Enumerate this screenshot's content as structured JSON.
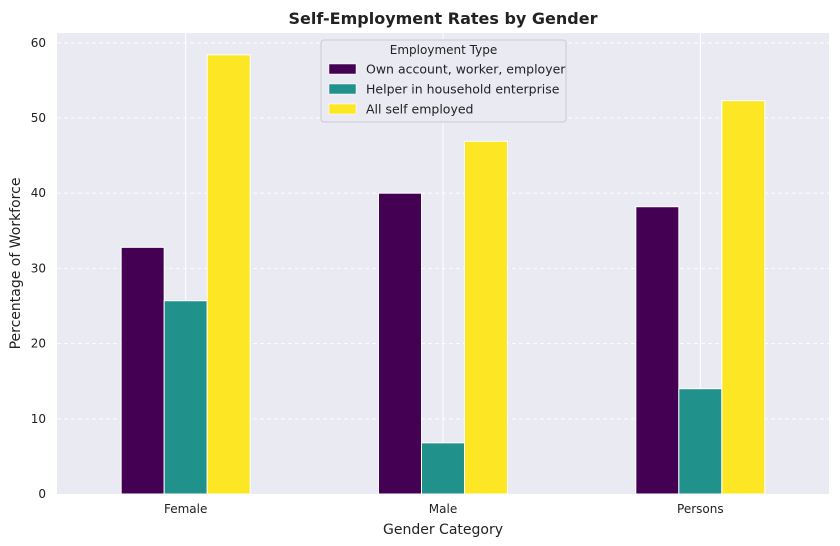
{
  "chart_data": {
    "type": "bar",
    "title": "Self-Employment Rates by Gender",
    "xlabel": "Gender Category",
    "ylabel": "Percentage of Workforce",
    "categories": [
      "Female",
      "Male",
      "Persons"
    ],
    "series": [
      {
        "name": "Own account, worker, employer",
        "values": [
          32.8,
          40.0,
          38.2
        ],
        "color": "#440154"
      },
      {
        "name": "Helper in household enterprise",
        "values": [
          25.7,
          6.8,
          14.0
        ],
        "color": "#21918c"
      },
      {
        "name": "All self employed",
        "values": [
          58.4,
          46.9,
          52.3
        ],
        "color": "#fde725"
      }
    ],
    "ylim": [
      0,
      61.3
    ],
    "yticks": [
      0,
      10,
      20,
      30,
      40,
      50,
      60
    ],
    "grid": true,
    "legend": {
      "title": "Employment Type",
      "placement": "top-center"
    },
    "background": "#eaeaf2"
  }
}
